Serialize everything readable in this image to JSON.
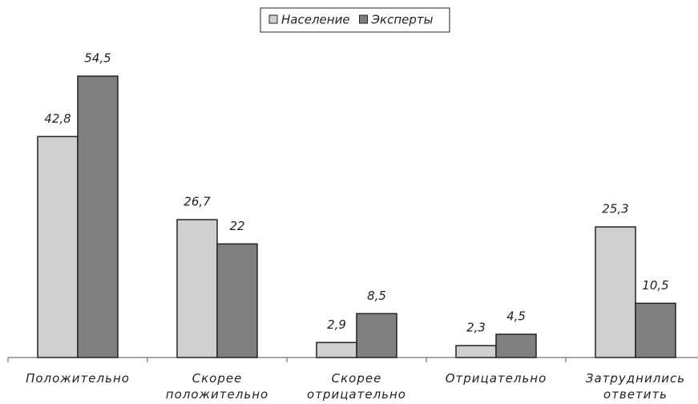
{
  "chart_data": {
    "type": "bar",
    "categories": [
      "Положительно",
      "Скорее положительно",
      "Скорее отрицательно",
      "Отрицательно",
      "Затруднились ответить"
    ],
    "series": [
      {
        "name": "Население",
        "color": "#d0d0d0",
        "values": [
          42.8,
          26.7,
          2.9,
          2.3,
          25.3
        ],
        "value_labels": [
          "42,8",
          "26,7",
          "2,9",
          "2,3",
          "25,3"
        ]
      },
      {
        "name": "Эксперты",
        "color": "#808080",
        "values": [
          54.5,
          22,
          8.5,
          4.5,
          10.5
        ],
        "value_labels": [
          "54,5",
          "22",
          "8,5",
          "4,5",
          "10,5"
        ]
      }
    ]
  }
}
